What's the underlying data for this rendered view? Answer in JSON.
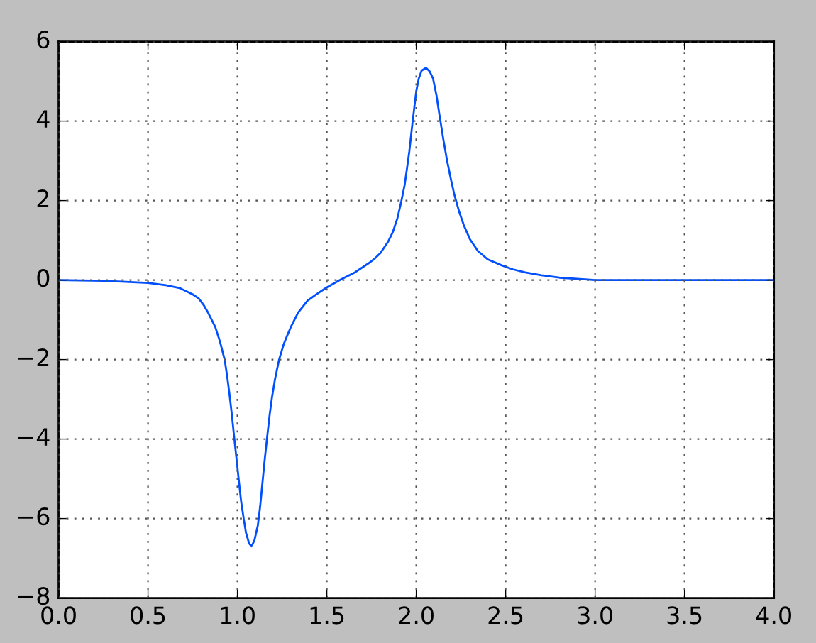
{
  "chart_data": {
    "type": "line",
    "xlim": [
      0,
      4
    ],
    "xticks": [
      {
        "value": 0,
        "label": "0.0"
      },
      {
        "value": 0.5,
        "label": "0.5"
      },
      {
        "value": 1,
        "label": "1.0"
      },
      {
        "value": 1.5,
        "label": "1.5"
      },
      {
        "value": 2,
        "label": "2.0"
      },
      {
        "value": 2.5,
        "label": "2.5"
      },
      {
        "value": 3,
        "label": "3.0"
      },
      {
        "value": 3.5,
        "label": "3.5"
      },
      {
        "value": 4,
        "label": "4.0"
      }
    ],
    "ylim": [
      -8,
      6
    ],
    "yticks": [
      {
        "value": -8,
        "label": "−8"
      },
      {
        "value": -6,
        "label": "−6"
      },
      {
        "value": -4,
        "label": "−4"
      },
      {
        "value": -2,
        "label": "−2"
      },
      0,
      2,
      4,
      6
    ],
    "grid": true,
    "line_style": "solid",
    "series": [
      {
        "color": "#0050ff",
        "x": [
          0.0,
          0.25,
          0.5,
          0.6,
          0.677,
          0.75,
          0.783,
          0.81,
          0.836,
          0.856,
          0.876,
          0.902,
          0.929,
          0.942,
          0.955,
          0.968,
          0.981,
          0.995,
          1.008,
          1.021,
          1.035,
          1.048,
          1.065,
          1.079,
          1.095,
          1.114,
          1.127,
          1.14,
          1.153,
          1.167,
          1.18,
          1.193,
          1.21,
          1.233,
          1.26,
          1.28,
          1.299,
          1.339,
          1.392,
          1.445,
          1.498,
          1.577,
          1.656,
          1.736,
          1.763,
          1.8,
          1.842,
          1.87,
          1.895,
          1.915,
          1.935,
          1.948,
          1.961,
          1.975,
          1.988,
          2.0,
          2.014,
          2.03,
          2.054,
          2.075,
          2.094,
          2.113,
          2.133,
          2.153,
          2.173,
          2.193,
          2.213,
          2.24,
          2.266,
          2.3,
          2.345,
          2.4,
          2.478,
          2.54,
          2.61,
          2.7,
          2.8,
          2.9,
          3.0,
          3.5,
          4.0
        ],
        "values": [
          0.0,
          -0.02,
          -0.07,
          -0.13,
          -0.2,
          -0.36,
          -0.46,
          -0.62,
          -0.82,
          -1.0,
          -1.18,
          -1.54,
          -2.01,
          -2.4,
          -2.85,
          -3.35,
          -3.92,
          -4.5,
          -5.05,
          -5.58,
          -6.0,
          -6.36,
          -6.62,
          -6.7,
          -6.55,
          -6.18,
          -5.7,
          -5.1,
          -4.5,
          -3.92,
          -3.4,
          -2.96,
          -2.5,
          -2.0,
          -1.6,
          -1.38,
          -1.18,
          -0.82,
          -0.52,
          -0.35,
          -0.19,
          0.01,
          0.19,
          0.43,
          0.52,
          0.68,
          0.96,
          1.22,
          1.56,
          1.95,
          2.39,
          2.8,
          3.23,
          3.8,
          4.3,
          4.75,
          5.07,
          5.27,
          5.34,
          5.25,
          5.07,
          4.65,
          4.06,
          3.5,
          2.99,
          2.55,
          2.15,
          1.72,
          1.38,
          1.03,
          0.73,
          0.52,
          0.37,
          0.27,
          0.19,
          0.12,
          0.06,
          0.03,
          0.0,
          0.0,
          0.0
        ]
      }
    ]
  }
}
